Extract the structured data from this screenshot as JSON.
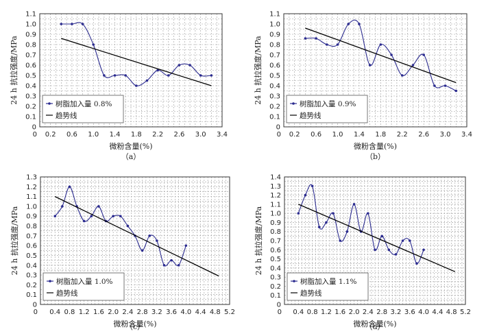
{
  "chart_data": [
    {
      "type": "line",
      "panel_label": "（a）",
      "xlabel": "微粉含量(%)",
      "ylabel": "24 h 抗拉强度/MPa",
      "xlim": [
        0,
        3.4
      ],
      "ylim": [
        0,
        1.1
      ],
      "x_ticks": [
        "0",
        "0.2",
        "0.6",
        "1.0",
        "1.4",
        "1.8",
        "2.2",
        "2.6",
        "3.0",
        "3.4"
      ],
      "y_ticks": [
        "0",
        "0.1",
        "0.2",
        "0.3",
        "0.4",
        "0.5",
        "0.6",
        "0.7",
        "0.8",
        "0.9",
        "1.0",
        "1.1"
      ],
      "grid": true,
      "legend_position": "bottom-left",
      "series": [
        {
          "name": "树脂加入量 0.8%",
          "kind": "data",
          "color": "#2b2b8f",
          "x": [
            0.4,
            0.6,
            0.8,
            1.0,
            1.2,
            1.4,
            1.6,
            1.8,
            2.0,
            2.2,
            2.4,
            2.6,
            2.8,
            3.0,
            3.2
          ],
          "y": [
            1.0,
            1.0,
            1.0,
            0.8,
            0.5,
            0.5,
            0.5,
            0.4,
            0.45,
            0.55,
            0.5,
            0.6,
            0.6,
            0.5,
            0.5
          ]
        },
        {
          "name": "趋势线",
          "kind": "trend",
          "color": "#000000",
          "x": [
            0.4,
            3.2
          ],
          "y": [
            0.86,
            0.4
          ]
        }
      ]
    },
    {
      "type": "line",
      "panel_label": "（b）",
      "xlabel": "微粉含量(%)",
      "ylabel": "24 h 抗拉强度/MPa",
      "xlim": [
        0,
        3.4
      ],
      "ylim": [
        0,
        1.1
      ],
      "x_ticks": [
        "0",
        "0.2",
        "0.6",
        "1.0",
        "1.4",
        "1.8",
        "2.2",
        "2.6",
        "3.0",
        "3.4"
      ],
      "y_ticks": [
        "0",
        "0.1",
        "0.2",
        "0.3",
        "0.4",
        "0.5",
        "0.6",
        "0.7",
        "0.8",
        "0.9",
        "1.0",
        "1.1"
      ],
      "grid": true,
      "legend_position": "bottom-left",
      "series": [
        {
          "name": "树脂加入量 0.9%",
          "kind": "data",
          "color": "#2b2b8f",
          "x": [
            0.4,
            0.6,
            0.8,
            1.0,
            1.2,
            1.4,
            1.6,
            1.8,
            2.0,
            2.2,
            2.4,
            2.6,
            2.8,
            3.0,
            3.2
          ],
          "y": [
            0.86,
            0.86,
            0.8,
            0.8,
            1.0,
            1.0,
            0.6,
            0.8,
            0.7,
            0.5,
            0.6,
            0.7,
            0.4,
            0.4,
            0.35
          ]
        },
        {
          "name": "趋势线",
          "kind": "trend",
          "color": "#000000",
          "x": [
            0.4,
            3.2
          ],
          "y": [
            0.96,
            0.43
          ]
        }
      ]
    },
    {
      "type": "line",
      "panel_label": "（c）",
      "xlabel": "微粉含量(%)",
      "ylabel": "24 h 抗拉强度/MPa",
      "xlim": [
        0,
        5.2
      ],
      "ylim": [
        0,
        1.3
      ],
      "x_ticks": [
        "0",
        "0.4",
        "0.8",
        "1.2",
        "1.6",
        "2.0",
        "2.4",
        "2.8",
        "3.2",
        "3.6",
        "4.0",
        "4.4",
        "4.8",
        "5.2"
      ],
      "y_ticks": [
        "0",
        "0.1",
        "0.2",
        "0.3",
        "0.4",
        "0.5",
        "0.6",
        "0.7",
        "0.8",
        "0.9",
        "1.0",
        "1.1",
        "1.2",
        "1.3"
      ],
      "grid": true,
      "legend_position": "bottom-left",
      "series": [
        {
          "name": "树脂加入量 1.0%",
          "kind": "data",
          "color": "#2b2b8f",
          "x": [
            0.4,
            0.6,
            0.8,
            1.0,
            1.2,
            1.4,
            1.6,
            1.8,
            2.0,
            2.2,
            2.4,
            2.6,
            2.8,
            3.0,
            3.2,
            3.4,
            3.6,
            3.8,
            4.0
          ],
          "y": [
            0.9,
            1.0,
            1.2,
            1.0,
            0.85,
            0.9,
            1.0,
            0.85,
            0.9,
            0.9,
            0.8,
            0.7,
            0.55,
            0.7,
            0.65,
            0.4,
            0.45,
            0.4,
            0.6
          ]
        },
        {
          "name": "趋势线",
          "kind": "trend",
          "color": "#000000",
          "x": [
            0.4,
            4.9
          ],
          "y": [
            1.1,
            0.29
          ]
        }
      ]
    },
    {
      "type": "line",
      "panel_label": "（d）",
      "xlabel": "微粉含量(%)",
      "ylabel": "24 h 抗拉强度/MPa",
      "xlim": [
        0,
        5.2
      ],
      "ylim": [
        0,
        1.4
      ],
      "x_ticks": [
        "0",
        "0.4",
        "0.8",
        "1.2",
        "1.6",
        "2.0",
        "2.4",
        "2.8",
        "3.2",
        "3.6",
        "4.0",
        "4.4",
        "4.8",
        "5.2"
      ],
      "y_ticks": [
        "0",
        "0.1",
        "0.2",
        "0.3",
        "0.4",
        "0.5",
        "0.6",
        "0.7",
        "0.8",
        "0.9",
        "1.0",
        "1.1",
        "1.2",
        "1.3",
        "1.4"
      ],
      "grid": true,
      "legend_position": "bottom-left",
      "series": [
        {
          "name": "树脂加入量 1.1%",
          "kind": "data",
          "color": "#2b2b8f",
          "x": [
            0.4,
            0.6,
            0.8,
            1.0,
            1.2,
            1.4,
            1.6,
            1.8,
            2.0,
            2.2,
            2.4,
            2.6,
            2.8,
            3.0,
            3.2,
            3.4,
            3.6,
            3.8,
            4.0
          ],
          "y": [
            1.0,
            1.2,
            1.3,
            0.85,
            0.9,
            1.0,
            0.7,
            0.8,
            1.1,
            0.8,
            1.0,
            0.6,
            0.75,
            0.6,
            0.55,
            0.7,
            0.7,
            0.45,
            0.6
          ]
        },
        {
          "name": "趋势线",
          "kind": "trend",
          "color": "#000000",
          "x": [
            0.4,
            4.9
          ],
          "y": [
            1.1,
            0.36
          ]
        }
      ]
    }
  ]
}
